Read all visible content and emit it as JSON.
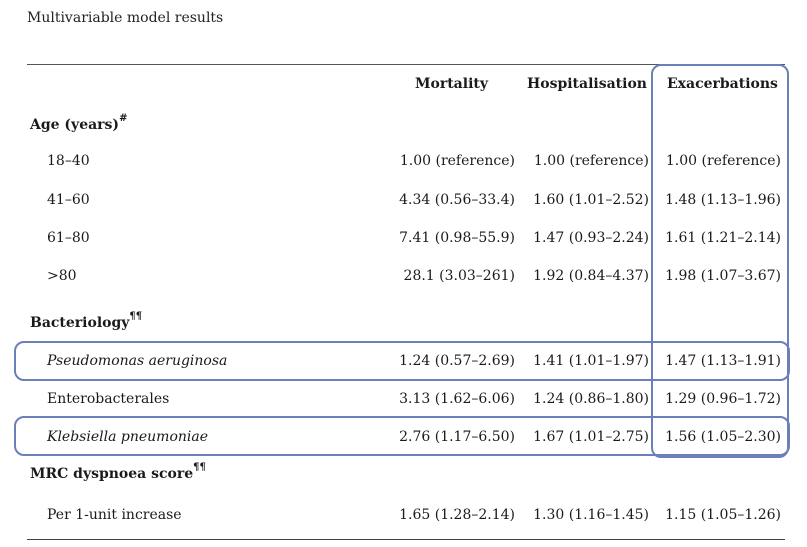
{
  "caption": "Multivariable model results",
  "headers": {
    "mortality": "Mortality",
    "hospitalisation": "Hospitalisation",
    "exacerbations": "Exacerbations"
  },
  "sections": {
    "age": {
      "label": "Age (years)",
      "sup": "#"
    },
    "bacteriology": {
      "label": "Bacteriology",
      "sup": "¶¶"
    },
    "mrc": {
      "label": "MRC dyspnoea score",
      "sup": "¶¶"
    }
  },
  "rows": [
    {
      "label": "18–40",
      "mortality": "1.00 (reference)",
      "hospitalisation": "1.00 (reference)",
      "exacerbations": "1.00 (reference)"
    },
    {
      "label": "41–60",
      "mortality": "4.34 (0.56–33.4)",
      "hospitalisation": "1.60 (1.01–2.52)",
      "exacerbations": "1.48 (1.13–1.96)"
    },
    {
      "label": "61–80",
      "mortality": "7.41 (0.98–55.9)",
      "hospitalisation": "1.47 (0.93–2.24)",
      "exacerbations": "1.61 (1.21–2.14)"
    },
    {
      "label": ">80",
      "mortality": "28.1 (3.03–261)",
      "hospitalisation": "1.92 (0.84–4.37)",
      "exacerbations": "1.98 (1.07–3.67)"
    },
    {
      "label": "Pseudomonas aeruginosa",
      "mortality": "1.24 (0.57–2.69)",
      "hospitalisation": "1.41 (1.01–1.97)",
      "exacerbations": "1.47 (1.13–1.91)"
    },
    {
      "label": "Enterobacterales",
      "mortality": "3.13 (1.62–6.06)",
      "hospitalisation": "1.24 (0.86–1.80)",
      "exacerbations": "1.29 (0.96–1.72)"
    },
    {
      "label": "Klebsiella pneumoniae",
      "mortality": "2.76 (1.17–6.50)",
      "hospitalisation": "1.67 (1.01–2.75)",
      "exacerbations": "1.56 (1.05–2.30)"
    },
    {
      "label": "Per 1-unit increase",
      "mortality": "1.65 (1.28–2.14)",
      "hospitalisation": "1.30 (1.16–1.45)",
      "exacerbations": "1.15 (1.05–1.26)"
    }
  ],
  "highlight_color": "#6b7fb8"
}
